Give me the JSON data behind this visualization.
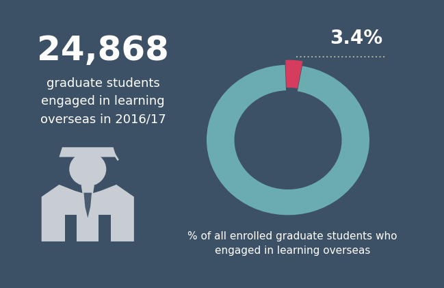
{
  "background_color": "#3d5166",
  "big_number": "24,868",
  "big_number_fontsize": 36,
  "description_text": "graduate students\nengaged in learning\noverseas in 2016/17",
  "description_fontsize": 13,
  "pct_value": 3.4,
  "pct_label": "3.4%",
  "pct_fontsize": 20,
  "donut_color_main": "#6aacb0",
  "donut_color_highlight": "#d63c5e",
  "donut_annotation": "% of all enrolled graduate students who\nengaged in learning overseas",
  "donut_annotation_fontsize": 11,
  "text_color": "#ffffff",
  "dotted_line_color": "#aaaaaa",
  "icon_color": "#c8cdd4",
  "icon_dark": "#3d5166",
  "figure_width": 6.49,
  "figure_height": 4.21,
  "dpi": 100
}
